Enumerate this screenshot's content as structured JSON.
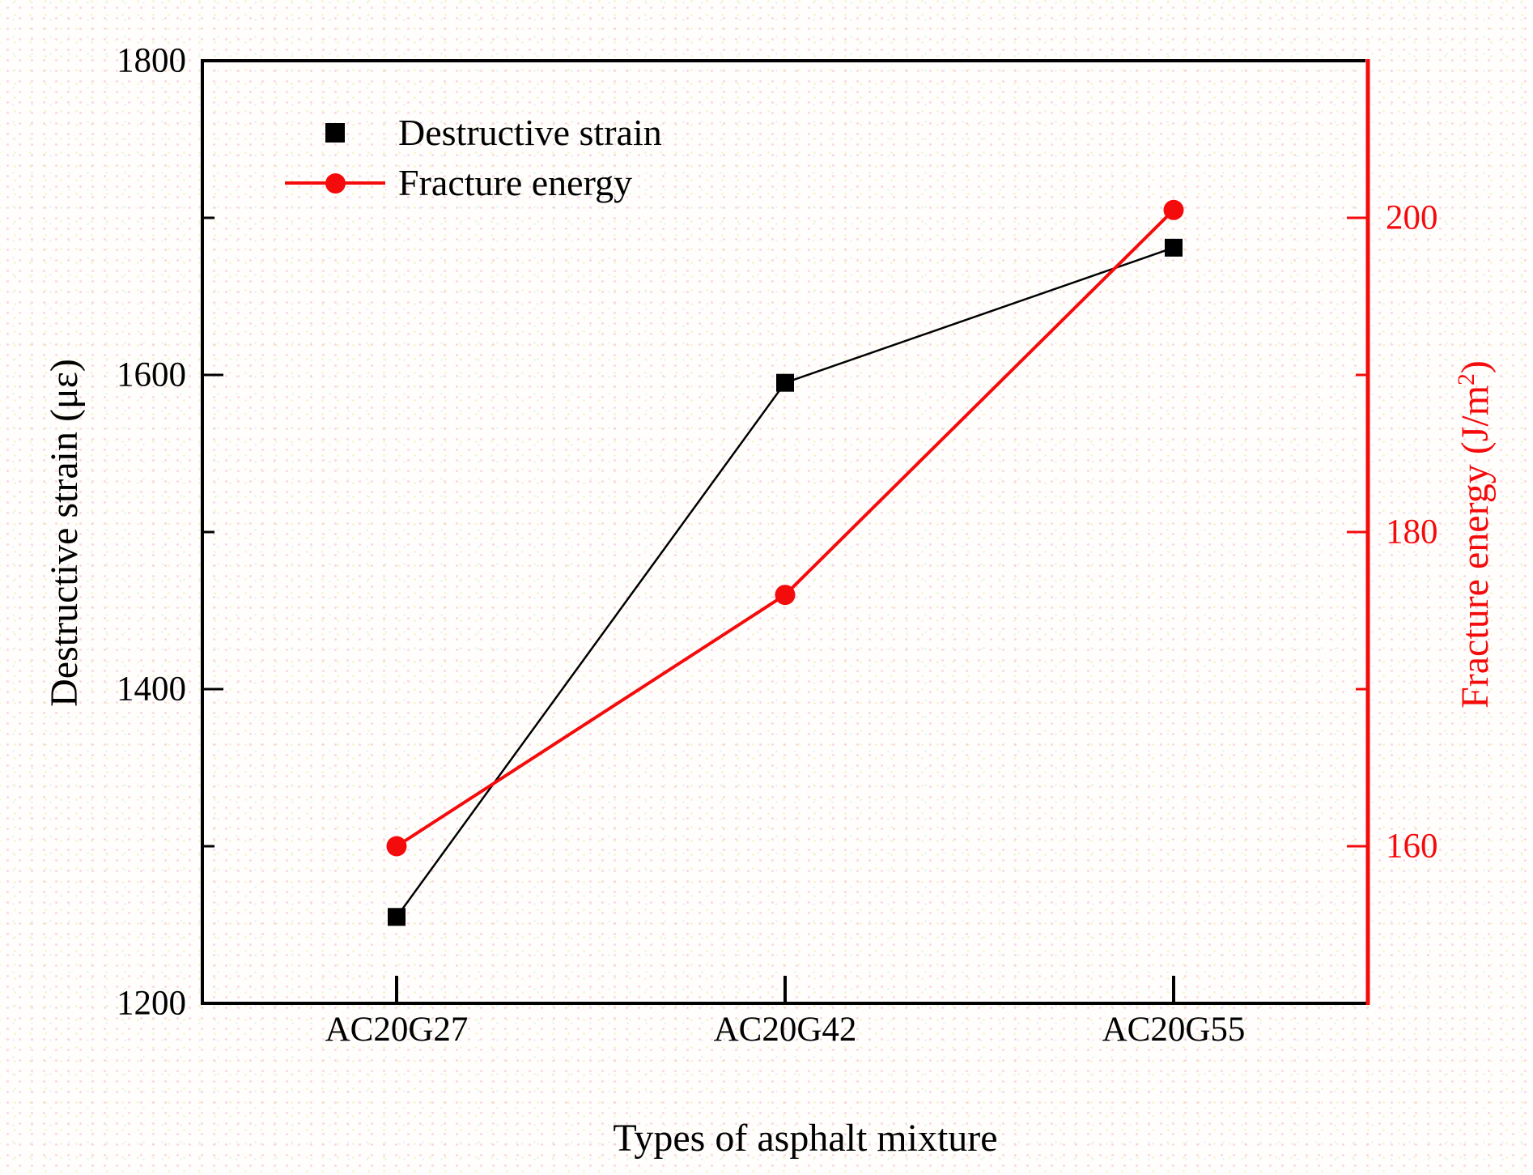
{
  "chart_data": {
    "type": "line",
    "title": "",
    "categories": [
      "AC20G27",
      "AC20G42",
      "AC20G55"
    ],
    "series": [
      {
        "name": "Destructive strain",
        "axis": "left",
        "marker": "square",
        "color": "#000000",
        "values": [
          1255,
          1595,
          1681
        ]
      },
      {
        "name": "Fracture energy",
        "axis": "right",
        "marker": "circle",
        "color": "#f40b0b",
        "values": [
          160,
          176,
          200.5
        ]
      }
    ],
    "xlabel": "Types of asphalt mixture",
    "left_axis": {
      "title": "Destructive strain (με)",
      "min": 1200,
      "max": 1800,
      "major_ticks": [
        1200,
        1400,
        1600,
        1800
      ],
      "minor_ticks": [
        1300,
        1500,
        1700
      ],
      "color": "#000000"
    },
    "right_axis": {
      "title_main": "Fracture energy (J/m",
      "title_sup": "2",
      "title_close": ")",
      "min": 150,
      "max": 210,
      "major_ticks": [
        160,
        180,
        200
      ],
      "minor_ticks": [
        170,
        190
      ],
      "color": "#f40b0b"
    },
    "legend": {
      "position": "top-left",
      "items": [
        {
          "label": "Destructive strain",
          "marker": "square",
          "color": "#000000",
          "show_line": false
        },
        {
          "label": "Fracture energy",
          "marker": "circle",
          "color": "#f40b0b",
          "show_line": true
        }
      ]
    },
    "grid": false
  }
}
